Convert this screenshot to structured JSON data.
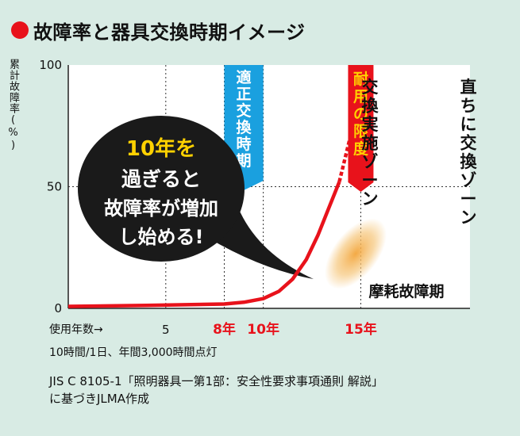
{
  "title": "故障率と器具交換時期イメージ",
  "colors": {
    "background": "#d8ebe4",
    "red": "#e8121b",
    "blue": "#1aa0df",
    "bubble": "#1a1a1a",
    "bubble_text": "#ffd100",
    "glow": "#f3a53b"
  },
  "chart_data": {
    "type": "line",
    "ylabel": "累計故障率(%)",
    "xlabel": "使用年数→",
    "xlim": [
      0,
      20.6
    ],
    "ylim": [
      0,
      100
    ],
    "yticks": [
      {
        "value": 0,
        "label": "0"
      },
      {
        "value": 50,
        "label": "50"
      },
      {
        "value": 100,
        "label": "100"
      }
    ],
    "xticks": [
      {
        "value": 5,
        "label": "5",
        "highlight": false
      },
      {
        "value": 8,
        "label": "8年",
        "highlight": true
      },
      {
        "value": 10,
        "label": "10年",
        "highlight": true
      },
      {
        "value": 15,
        "label": "15年",
        "highlight": true
      }
    ],
    "grid_x": [
      5,
      8,
      10,
      15
    ],
    "grid_y": [
      50
    ],
    "series": [
      {
        "x": [
          0,
          4,
          8,
          9,
          10,
          10.8,
          11.5,
          12.2,
          12.8,
          13.4,
          13.9
        ],
        "y": [
          0.8,
          1.2,
          1.8,
          2.5,
          4,
          7,
          12,
          20,
          30,
          42,
          52
        ],
        "style": "solid"
      },
      {
        "x": [
          13.9,
          14.6
        ],
        "y": [
          52,
          75
        ],
        "style": "dashed"
      }
    ],
    "annotations": {
      "appropriate_period": {
        "label": "適正交換時期",
        "from": 8,
        "to": 10
      },
      "service_limit": {
        "label": "耐用の限度",
        "at": 15
      },
      "replace_zone": "交換実施ゾーン",
      "immediate_zone": "直ちに交換ゾーン",
      "wearout": "摩耗故障期",
      "bubble": [
        "10年を",
        "過ぎると",
        "故障率が増加",
        "し始める!"
      ]
    }
  },
  "notes": {
    "line1": "10時間/1日、年間3,000時間点灯",
    "line2": "JIS C 8105-1「照明器具一第1部：安全性要求事項通則 解説」",
    "line3": "に基づきJLMA作成"
  }
}
